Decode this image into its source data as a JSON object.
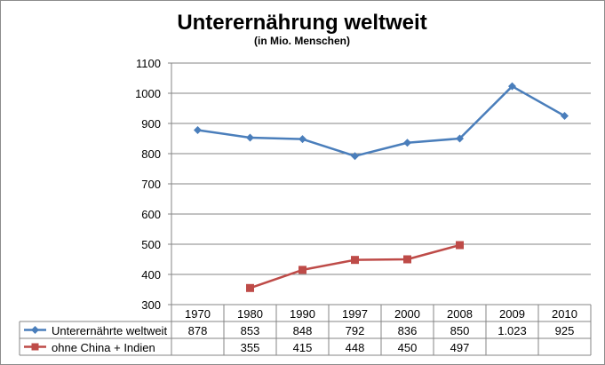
{
  "chart_data": {
    "type": "line",
    "title": "Unterernährung weltweit",
    "subtitle": "(in Mio. Menschen)",
    "categories": [
      "1970",
      "1980",
      "1990",
      "1997",
      "2000",
      "2008",
      "2009",
      "2010"
    ],
    "ylim": [
      300,
      1100
    ],
    "yticks": [
      "300",
      "400",
      "500",
      "600",
      "700",
      "800",
      "900",
      "1000",
      "1100"
    ],
    "grid": true,
    "legend_position": "bottom-table",
    "series": [
      {
        "name": "Unterernährte  weltweit",
        "color": "#4a7ebb",
        "marker": "diamond",
        "values": [
          878,
          853,
          848,
          792,
          836,
          850,
          1023,
          925
        ],
        "labels": [
          "878",
          "853",
          "848",
          "792",
          "836",
          "850",
          "1.023",
          "925"
        ]
      },
      {
        "name": "ohne China  + Indien",
        "color": "#be4b48",
        "marker": "square",
        "values": [
          null,
          355,
          415,
          448,
          450,
          497,
          null,
          null
        ],
        "labels": [
          "",
          "355",
          "415",
          "448",
          "450",
          "497",
          "",
          ""
        ]
      }
    ]
  }
}
